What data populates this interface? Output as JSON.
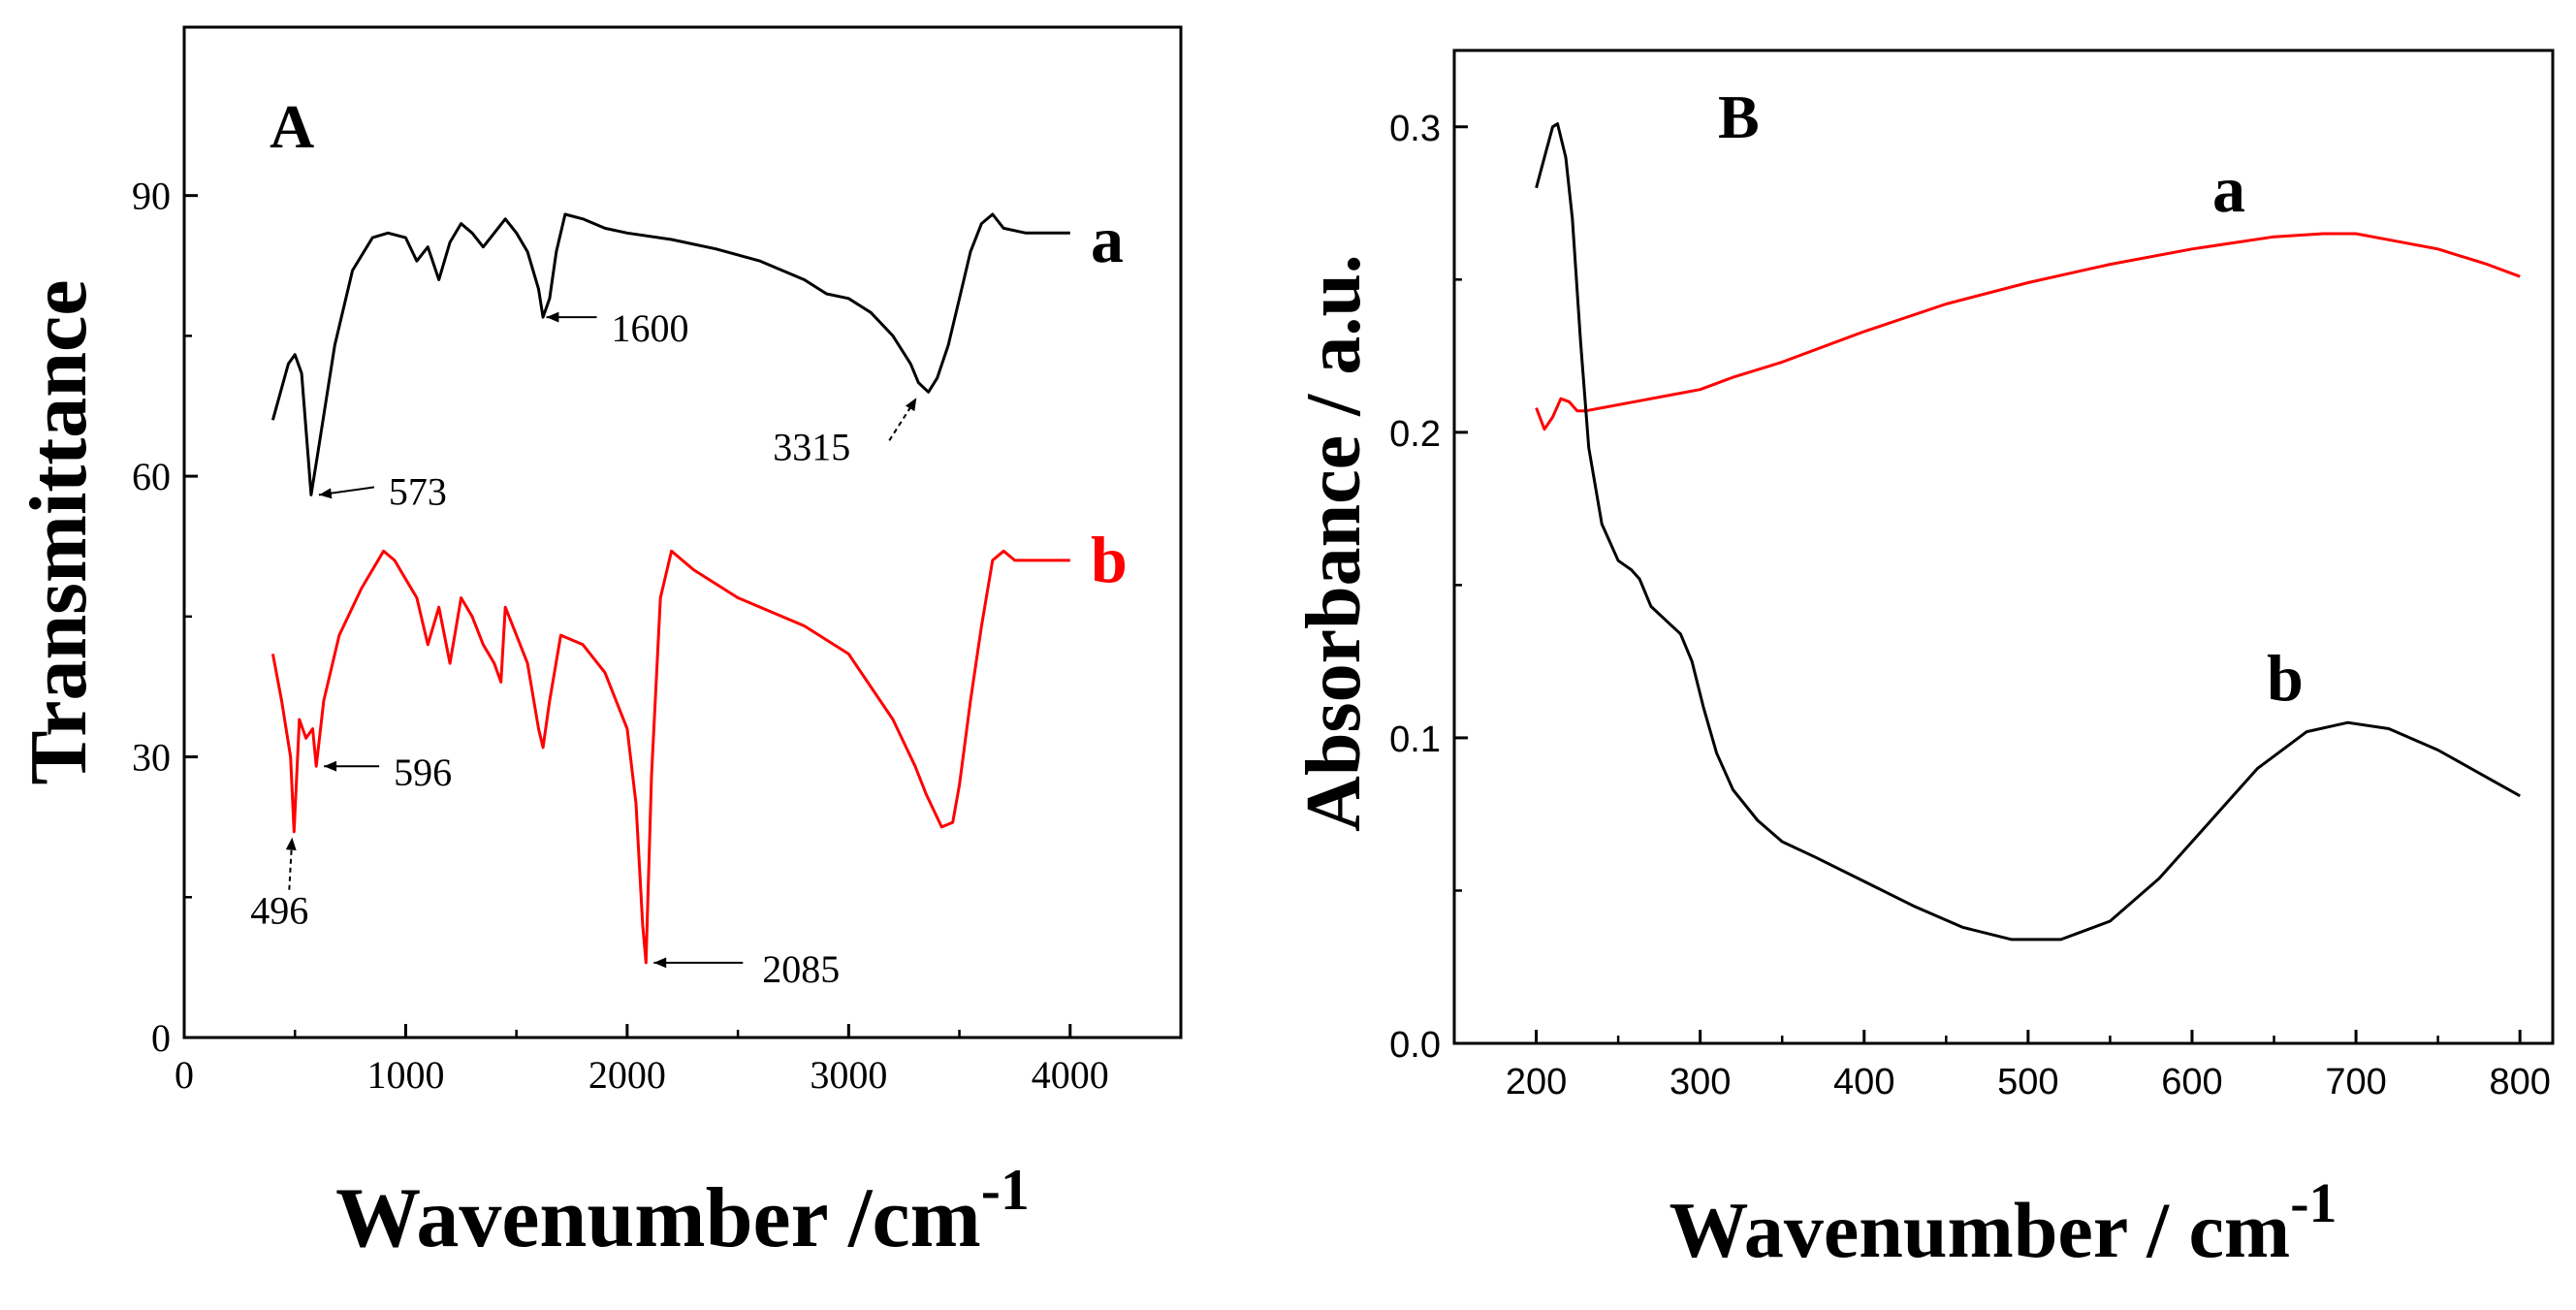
{
  "chart_data": [
    {
      "panel": "A",
      "type": "line",
      "panel_label": "A",
      "xlabel": "Wavenumber /cm",
      "xlabel_sup": "-1",
      "ylabel": "Transmittance",
      "xlim": [
        0,
        4500
      ],
      "ylim": [
        0,
        108
      ],
      "xticks": [
        0,
        1000,
        2000,
        3000,
        4000
      ],
      "yticks": [
        0,
        30,
        60,
        90
      ],
      "series": [
        {
          "name": "a",
          "color": "#000000",
          "x": [
            400,
            470,
            500,
            530,
            560,
            573,
            600,
            680,
            760,
            850,
            920,
            1000,
            1050,
            1100,
            1150,
            1200,
            1250,
            1300,
            1350,
            1400,
            1450,
            1500,
            1550,
            1600,
            1620,
            1650,
            1680,
            1720,
            1800,
            1900,
            2000,
            2200,
            2400,
            2600,
            2800,
            2900,
            3000,
            3100,
            3200,
            3280,
            3315,
            3360,
            3400,
            3450,
            3500,
            3550,
            3600,
            3650,
            3700,
            3800,
            3900,
            4000
          ],
          "y": [
            66,
            72,
            73,
            71,
            62,
            58,
            62,
            74,
            82,
            85.5,
            86,
            85.5,
            83,
            84.5,
            81,
            85,
            87,
            86,
            84.5,
            86,
            87.5,
            86,
            84,
            80,
            77,
            79,
            84,
            88,
            87.5,
            86.5,
            86,
            85.3,
            84.3,
            83,
            81,
            79.5,
            79,
            77.5,
            75,
            72,
            70,
            69,
            70.5,
            74,
            79,
            84,
            87,
            88,
            86.5,
            86,
            86,
            86
          ]
        },
        {
          "name": "b",
          "color": "#ff0000",
          "x": [
            400,
            440,
            480,
            496,
            520,
            550,
            580,
            596,
            630,
            700,
            800,
            900,
            950,
            1000,
            1050,
            1100,
            1150,
            1200,
            1250,
            1300,
            1350,
            1400,
            1430,
            1450,
            1500,
            1550,
            1600,
            1620,
            1650,
            1700,
            1800,
            1900,
            2000,
            2040,
            2070,
            2085,
            2110,
            2150,
            2200,
            2300,
            2500,
            2800,
            3000,
            3200,
            3300,
            3350,
            3420,
            3470,
            3500,
            3550,
            3600,
            3650,
            3700,
            3750,
            3800,
            4000
          ],
          "y": [
            41,
            36,
            30,
            22,
            34,
            32,
            33,
            29,
            36,
            43,
            48,
            52,
            51,
            49,
            47,
            42,
            46,
            40,
            47,
            45,
            42,
            40,
            38,
            46,
            43,
            40,
            33,
            31,
            36,
            43,
            42,
            39,
            33,
            25,
            12,
            8,
            28,
            47,
            52,
            50,
            47,
            44,
            41,
            34,
            29,
            26,
            22.5,
            23,
            27,
            36,
            44,
            51,
            52,
            51,
            51,
            51
          ]
        }
      ],
      "annotations": [
        {
          "text": "573",
          "x": 573,
          "y": 58
        },
        {
          "text": "1600",
          "x": 1600,
          "y": 77
        },
        {
          "text": "3315",
          "x": 3315,
          "y": 69
        },
        {
          "text": "596",
          "x": 596,
          "y": 29
        },
        {
          "text": "496",
          "x": 496,
          "y": 22
        },
        {
          "text": "2085",
          "x": 2085,
          "y": 8
        }
      ]
    },
    {
      "panel": "B",
      "type": "line",
      "panel_label": "B",
      "xlabel": "Wavenumber / cm",
      "xlabel_sup": "-1",
      "ylabel": "Absorbance / a.u.",
      "xlim": [
        150,
        820
      ],
      "ylim": [
        0,
        0.325
      ],
      "xticks": [
        200,
        300,
        400,
        500,
        600,
        700,
        800
      ],
      "yticks": [
        0.0,
        0.1,
        0.2,
        0.3
      ],
      "ytick_labels": [
        "0.0",
        "0.1",
        "0.2",
        "0.3"
      ],
      "series": [
        {
          "name": "a",
          "color": "#ff0000",
          "x": [
            200,
            205,
            210,
            215,
            220,
            225,
            230,
            240,
            260,
            280,
            300,
            320,
            350,
            400,
            450,
            500,
            550,
            600,
            650,
            680,
            700,
            720,
            750,
            780,
            800
          ],
          "y": [
            0.208,
            0.201,
            0.205,
            0.211,
            0.21,
            0.207,
            0.207,
            0.208,
            0.21,
            0.212,
            0.214,
            0.218,
            0.223,
            0.233,
            0.242,
            0.249,
            0.255,
            0.26,
            0.264,
            0.265,
            0.265,
            0.263,
            0.26,
            0.255,
            0.251
          ]
        },
        {
          "name": "b",
          "color": "#000000",
          "x": [
            200,
            205,
            210,
            213,
            218,
            222,
            227,
            232,
            240,
            250,
            258,
            263,
            270,
            280,
            288,
            295,
            302,
            310,
            320,
            335,
            350,
            370,
            400,
            430,
            460,
            490,
            520,
            550,
            580,
            610,
            640,
            670,
            695,
            720,
            750,
            780,
            800
          ],
          "y": [
            0.28,
            0.29,
            0.3,
            0.301,
            0.29,
            0.27,
            0.23,
            0.195,
            0.17,
            0.158,
            0.155,
            0.152,
            0.143,
            0.138,
            0.134,
            0.125,
            0.11,
            0.095,
            0.083,
            0.073,
            0.066,
            0.061,
            0.053,
            0.045,
            0.038,
            0.034,
            0.034,
            0.04,
            0.054,
            0.072,
            0.09,
            0.102,
            0.105,
            0.103,
            0.096,
            0.087,
            0.081
          ]
        }
      ]
    }
  ]
}
